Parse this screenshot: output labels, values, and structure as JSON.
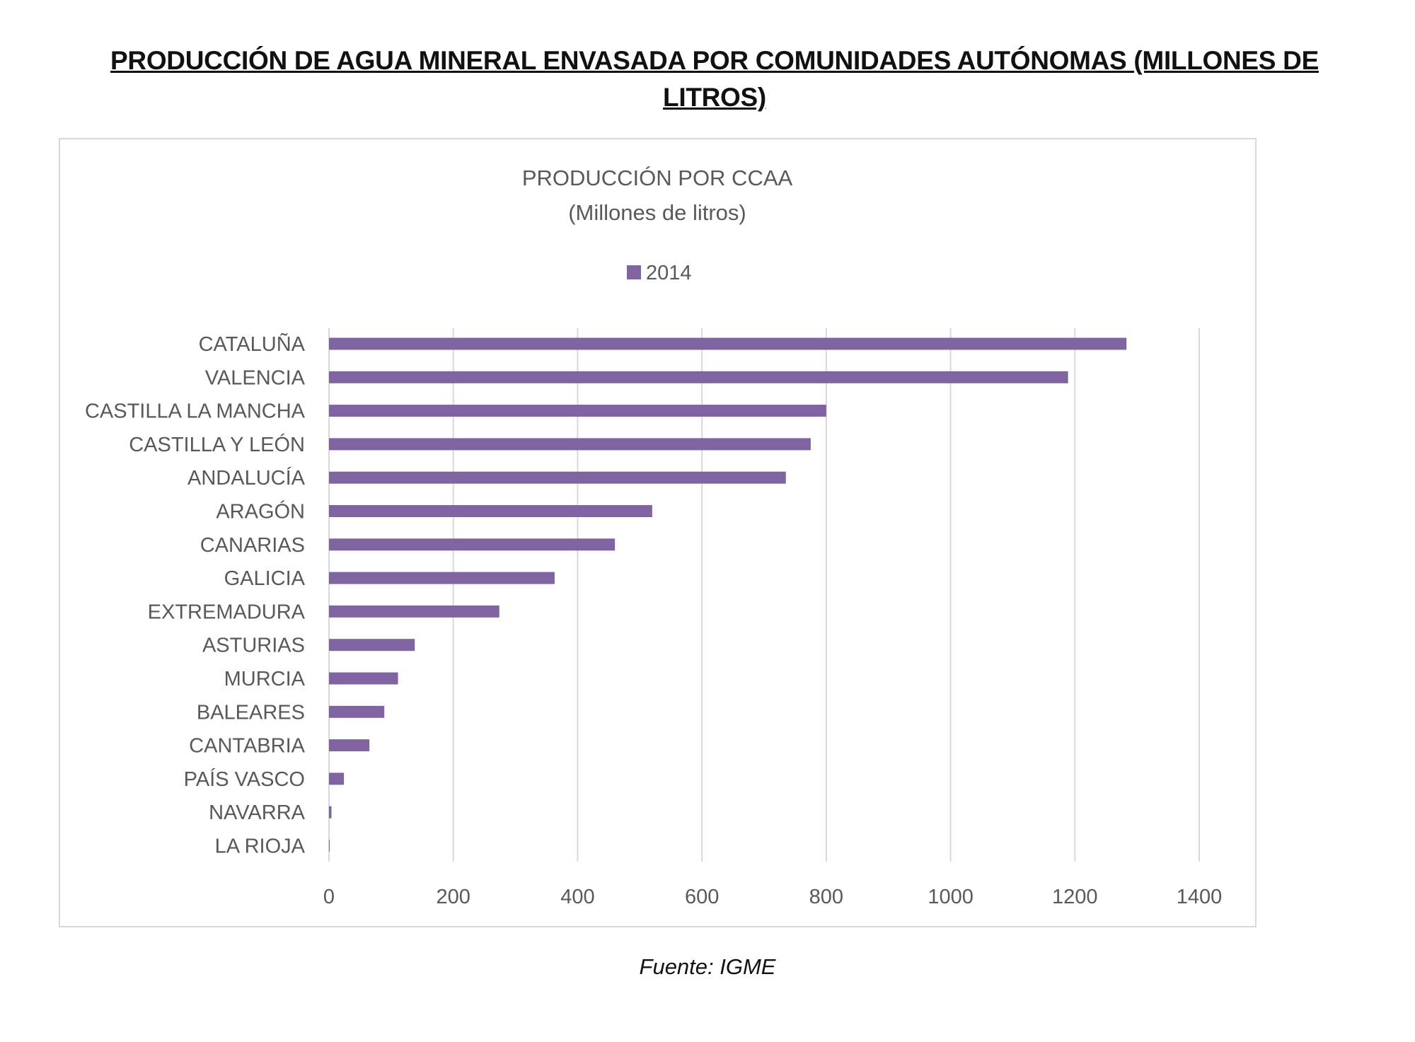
{
  "document": {
    "title": "PRODUCCIÓN DE AGUA MINERAL ENVASADA POR COMUNIDADES AUTÓNOMAS (MILLONES DE LITROS)",
    "source": "Fuente: IGME"
  },
  "chart_data": {
    "type": "bar",
    "orientation": "horizontal",
    "title": "PRODUCCIÓN POR CCAA",
    "subtitle": "(Millones de litros)",
    "categories": [
      "CATALUÑA",
      "VALENCIA",
      "CASTILLA LA MANCHA",
      "CASTILLA Y LEÓN",
      "ANDALUCÍA",
      "ARAGÓN",
      "CANARIAS",
      "GALICIA",
      "EXTREMADURA",
      "ASTURIAS",
      "MURCIA",
      "BALEARES",
      "CANTABRIA",
      "PAÍS VASCO",
      "NAVARRA",
      "LA RIOJA"
    ],
    "series": [
      {
        "name": "2014",
        "color": "#8064a2",
        "values": [
          1283,
          1189,
          800,
          775,
          735,
          520,
          460,
          363,
          274,
          138,
          111,
          89,
          65,
          24,
          4,
          1
        ]
      }
    ],
    "xlim": [
      0,
      1400
    ],
    "xticks": [
      "0",
      "200",
      "400",
      "600",
      "800",
      "1000",
      "1200",
      "1400"
    ],
    "grid": true,
    "legend": "top"
  }
}
